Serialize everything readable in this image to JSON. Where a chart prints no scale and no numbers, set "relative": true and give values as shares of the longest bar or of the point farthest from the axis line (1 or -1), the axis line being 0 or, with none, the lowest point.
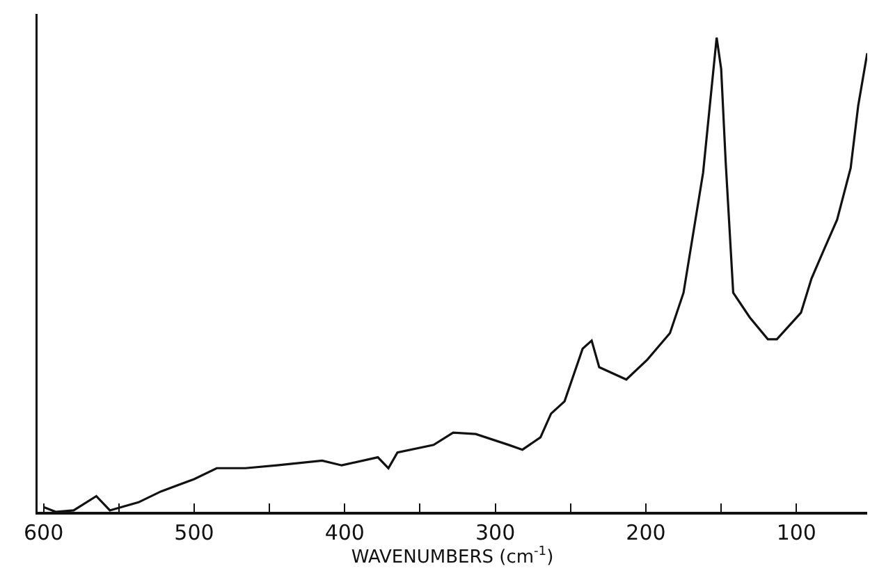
{
  "chart_data": {
    "type": "line",
    "relative": true,
    "xlabel": "WAVENUMBERS (cm$^{-1}$)",
    "color": "#111111",
    "xlim": [
      604,
      53
    ],
    "xticks": [
      600,
      {
        "value": 550,
        "label": null
      },
      500,
      {
        "value": 450,
        "label": null
      },
      400,
      {
        "value": 350,
        "label": null
      },
      300,
      {
        "value": 250,
        "label": null
      },
      200,
      {
        "value": 150,
        "label": null
      },
      100
    ],
    "x": [
      600,
      592,
      580,
      565,
      556,
      537,
      522,
      500,
      485,
      466,
      445,
      415,
      402,
      378,
      371,
      365,
      341,
      328,
      313,
      291,
      282,
      270,
      263,
      254,
      242,
      236,
      231,
      213,
      199,
      184,
      175,
      162,
      153,
      150,
      147,
      142,
      131,
      119,
      113,
      97,
      90,
      82,
      73,
      64,
      59,
      53
    ],
    "values": [
      0.01,
      0,
      0.003,
      0.033,
      0.003,
      0.02,
      0.043,
      0.069,
      0.092,
      0.092,
      0.098,
      0.108,
      0.098,
      0.115,
      0.092,
      0.125,
      0.141,
      0.167,
      0.164,
      0.141,
      0.131,
      0.157,
      0.207,
      0.233,
      0.344,
      0.361,
      0.305,
      0.279,
      0.321,
      0.377,
      0.462,
      0.715,
      1,
      0.934,
      0.738,
      0.462,
      0.41,
      0.364,
      0.364,
      0.42,
      0.492,
      0.551,
      0.616,
      0.725,
      0.856,
      0.967
    ],
    "line_style": "solid"
  }
}
